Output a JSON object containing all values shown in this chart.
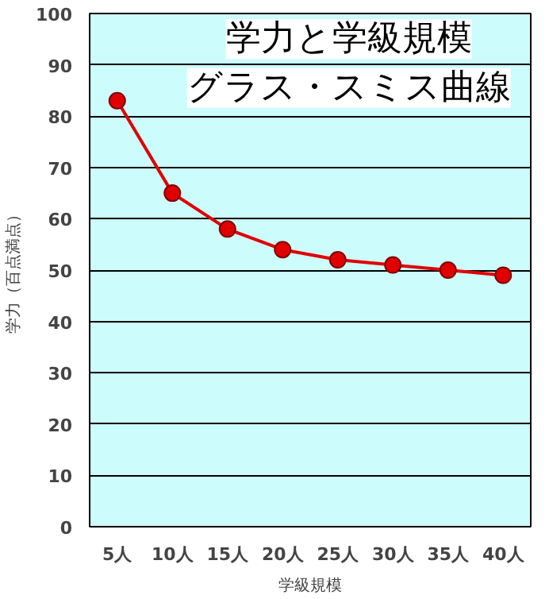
{
  "chart_data": {
    "type": "line",
    "title": "学力と学級規模",
    "subtitle": "グラス・スミス曲線",
    "xlabel": "学級規模",
    "ylabel": "学力（百点満点）",
    "categories": [
      "5人",
      "10人",
      "15人",
      "20人",
      "25人",
      "30人",
      "35人",
      "40人"
    ],
    "series": [
      {
        "color": "#e00000",
        "values": [
          83,
          65,
          58,
          54,
          52,
          51,
          50,
          49
        ]
      }
    ],
    "ylim": [
      0,
      100
    ],
    "yticks": [
      0,
      10,
      20,
      30,
      40,
      50,
      60,
      70,
      80,
      90,
      100
    ],
    "grid": "y",
    "marker": "circle"
  }
}
